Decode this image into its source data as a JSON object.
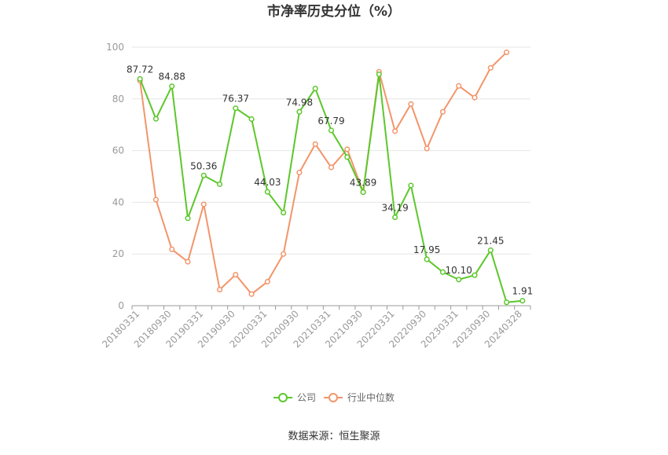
{
  "chart_data": {
    "type": "line",
    "title": "市净率历史分位（%）",
    "source": "数据来源：恒生聚源",
    "ylim": [
      0,
      100
    ],
    "y_ticks": [
      0,
      20,
      40,
      60,
      80,
      100
    ],
    "grid": true,
    "legend_position": "bottom",
    "x": [
      "20180331",
      "20180630",
      "20180930",
      "20181231",
      "20190331",
      "20190630",
      "20190930",
      "20191231",
      "20200331",
      "20200630",
      "20200930",
      "20201231",
      "20210331",
      "20210630",
      "20210930",
      "20211231",
      "20220331",
      "20220630",
      "20220930",
      "20221231",
      "20230331",
      "20230630",
      "20230930",
      "20231231",
      "20240328"
    ],
    "x_tick_labels": [
      "20180331",
      "20180930",
      "20190331",
      "20190930",
      "20200331",
      "20200930",
      "20210331",
      "20210930",
      "20220331",
      "20220930",
      "20230331",
      "20230930",
      "20240328"
    ],
    "series": [
      {
        "name": "公司",
        "color": "#5cc72b",
        "values": [
          87.72,
          72.3,
          84.88,
          33.8,
          50.36,
          47.0,
          76.37,
          72.2,
          44.03,
          36.0,
          74.98,
          84.0,
          67.79,
          57.5,
          43.89,
          89.5,
          34.19,
          46.5,
          17.95,
          13.0,
          10.1,
          11.8,
          21.45,
          1.3,
          1.91
        ],
        "labels": {
          "0": "87.72",
          "2": "84.88",
          "4": "50.36",
          "6": "76.37",
          "8": "44.03",
          "10": "74.98",
          "12": "67.79",
          "14": "43.89",
          "16": "34.19",
          "18": "17.95",
          "20": "10.10",
          "22": "21.45",
          "24": "1.91"
        }
      },
      {
        "name": "行业中位数",
        "color": "#f2956a",
        "values": [
          87.0,
          41.0,
          21.8,
          17.0,
          39.2,
          6.2,
          12.0,
          4.5,
          9.3,
          20.0,
          51.5,
          62.5,
          53.5,
          60.5,
          44.0,
          90.5,
          67.5,
          78.0,
          60.8,
          75.0,
          85.0,
          80.5,
          92.0,
          98.0,
          null
        ]
      }
    ]
  }
}
